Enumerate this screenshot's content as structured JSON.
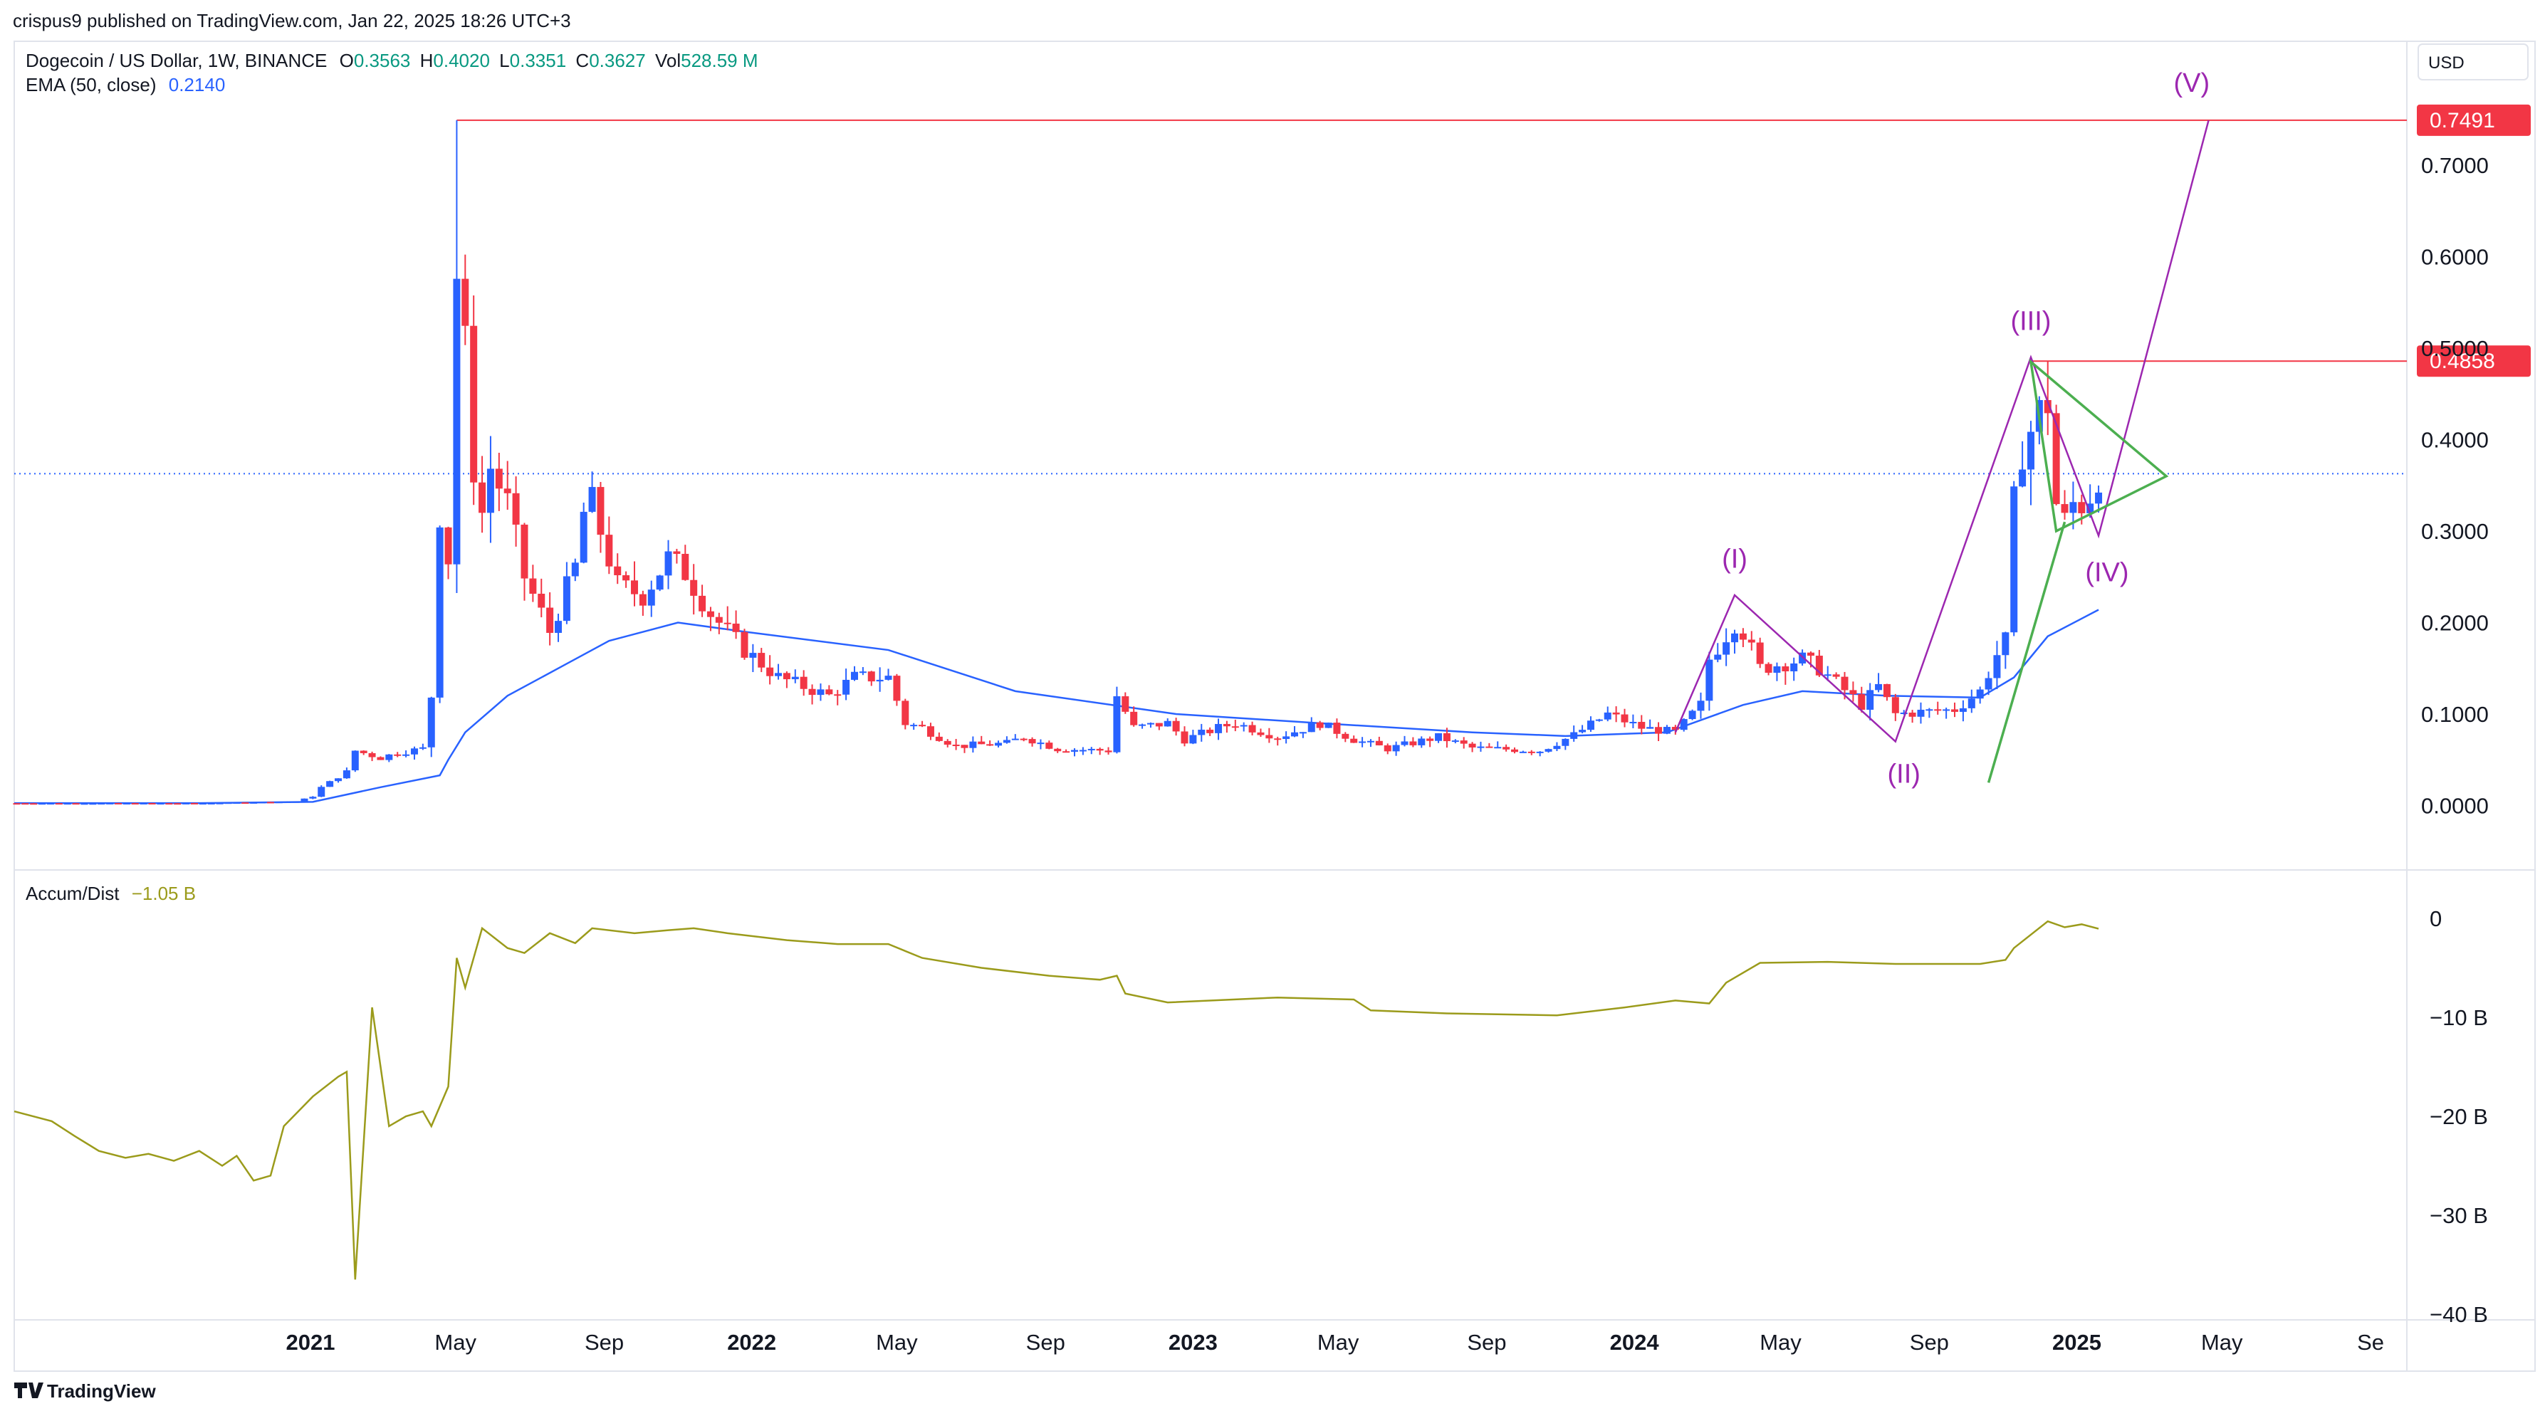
{
  "publisher_line": "crispus9 published on TradingView.com, Jan 22, 2025 18:26 UTC+3",
  "brand": "TradingView",
  "currency": "USD",
  "legend": {
    "symbol": "Dogecoin / US Dollar, 1W, BINANCE",
    "o_label": "O",
    "o_value": "0.3563",
    "h_label": "H",
    "h_value": "0.4020",
    "l_label": "L",
    "l_value": "0.3351",
    "c_label": "C",
    "c_value": "0.3627",
    "vol_label": "Vol",
    "vol_value": "528.59 M",
    "ema_label": "EMA (50, close)",
    "ema_value": "0.2140",
    "ad_label": "Accum/Dist",
    "ad_value": "−1.05 B"
  },
  "colors": {
    "up": "#2962ff",
    "down": "#f23645",
    "ema": "#2962ff",
    "ad": "#9b9b1b",
    "level": "#f23645",
    "wave": "#9c27b0",
    "triangle": "#4caf50"
  },
  "chart_data": [
    {
      "type": "candlestick",
      "title": "Dogecoin / US Dollar, 1W, BINANCE",
      "ylim": [
        -0.05,
        0.79
      ],
      "y_ticks": [
        "0.0000",
        "0.1000",
        "0.2000",
        "0.3000",
        "0.4000",
        "0.5000",
        "0.6000",
        "0.7000"
      ],
      "x_ticks": [
        "2021",
        "May",
        "Sep",
        "2022",
        "May",
        "Sep",
        "2023",
        "May",
        "Sep",
        "2024",
        "May",
        "Sep",
        "2025",
        "May",
        "Se"
      ],
      "price_labels": [
        "0.7491",
        "0.4858"
      ],
      "horizontal_levels": [
        0.7491,
        0.4858
      ],
      "last_close": 0.3627,
      "wave_labels": [
        "(I)",
        "(II)",
        "(III)",
        "(IV)",
        "(V)"
      ],
      "anchors": [
        [
          "2020-05-01",
          0.0026
        ],
        [
          "2020-10-01",
          0.0026
        ],
        [
          "2020-12-20",
          0.0045
        ],
        [
          "2021-01-03",
          0.01
        ],
        [
          "2021-01-10",
          0.02
        ],
        [
          "2021-01-31",
          0.037
        ],
        [
          "2021-02-07",
          0.06
        ],
        [
          "2021-02-28",
          0.052
        ],
        [
          "2021-03-14",
          0.058
        ],
        [
          "2021-04-04",
          0.062
        ],
        [
          "2021-04-11",
          0.12
        ],
        [
          "2021-04-18",
          0.32
        ],
        [
          "2021-04-25",
          0.27
        ],
        [
          "2021-05-02",
          0.58
        ],
        [
          "2021-05-09",
          0.5
        ],
        [
          "2021-05-16",
          0.37
        ],
        [
          "2021-05-23",
          0.32
        ],
        [
          "2021-05-30",
          0.37
        ],
        [
          "2021-06-13",
          0.33
        ],
        [
          "2021-06-27",
          0.25
        ],
        [
          "2021-07-18",
          0.19
        ],
        [
          "2021-08-08",
          0.26
        ],
        [
          "2021-08-15",
          0.32
        ],
        [
          "2021-08-22",
          0.33
        ],
        [
          "2021-09-12",
          0.24
        ],
        [
          "2021-10-03",
          0.23
        ],
        [
          "2021-10-24",
          0.27
        ],
        [
          "2021-11-07",
          0.255
        ],
        [
          "2021-11-28",
          0.21
        ],
        [
          "2021-12-26",
          0.17
        ],
        [
          "2022-01-23",
          0.14
        ],
        [
          "2022-03-06",
          0.12
        ],
        [
          "2022-03-27",
          0.14
        ],
        [
          "2022-04-24",
          0.14
        ],
        [
          "2022-05-08",
          0.09
        ],
        [
          "2022-05-22",
          0.085
        ],
        [
          "2022-06-19",
          0.065
        ],
        [
          "2022-07-31",
          0.068
        ],
        [
          "2022-08-14",
          0.075
        ],
        [
          "2022-09-11",
          0.062
        ],
        [
          "2022-10-23",
          0.06
        ],
        [
          "2022-10-30",
          0.12
        ],
        [
          "2022-11-13",
          0.085
        ],
        [
          "2022-12-11",
          0.09
        ],
        [
          "2022-12-25",
          0.072
        ],
        [
          "2023-01-22",
          0.085
        ],
        [
          "2023-02-05",
          0.09
        ],
        [
          "2023-03-12",
          0.075
        ],
        [
          "2023-04-16",
          0.09
        ],
        [
          "2023-05-14",
          0.072
        ],
        [
          "2023-06-11",
          0.062
        ],
        [
          "2023-07-23",
          0.075
        ],
        [
          "2023-08-20",
          0.063
        ],
        [
          "2023-10-15",
          0.06
        ],
        [
          "2023-11-12",
          0.077
        ],
        [
          "2023-12-10",
          0.1
        ],
        [
          "2024-01-07",
          0.085
        ],
        [
          "2024-02-04",
          0.08
        ],
        [
          "2024-02-25",
          0.11
        ],
        [
          "2024-03-03",
          0.16
        ],
        [
          "2024-03-24",
          0.2
        ],
        [
          "2024-03-31",
          0.19
        ],
        [
          "2024-04-14",
          0.15
        ],
        [
          "2024-05-19",
          0.16
        ],
        [
          "2024-06-02",
          0.15
        ],
        [
          "2024-07-07",
          0.11
        ],
        [
          "2024-07-21",
          0.13
        ],
        [
          "2024-08-04",
          0.1
        ],
        [
          "2024-09-22",
          0.105
        ],
        [
          "2024-10-13",
          0.125
        ],
        [
          "2024-10-27",
          0.165
        ],
        [
          "2024-11-03",
          0.18
        ],
        [
          "2024-11-10",
          0.33
        ],
        [
          "2024-11-17",
          0.39
        ],
        [
          "2024-12-01",
          0.43
        ],
        [
          "2024-12-08",
          0.44
        ],
        [
          "2024-12-15",
          0.33
        ],
        [
          "2024-12-22",
          0.31
        ],
        [
          "2024-12-29",
          0.33
        ],
        [
          "2025-01-05",
          0.33
        ],
        [
          "2025-01-12",
          0.34
        ],
        [
          "2025-01-19",
          0.3627
        ]
      ],
      "spike_wicks": [
        [
          "2021-05-02",
          0.7491
        ],
        [
          "2024-12-08",
          0.4858
        ]
      ],
      "series": [
        {
          "name": "EMA (50, close)",
          "points": [
            [
              "2020-05-01",
              0.0026
            ],
            [
              "2020-10-01",
              0.0026
            ],
            [
              "2021-01-03",
              0.004
            ],
            [
              "2021-02-28",
              0.02
            ],
            [
              "2021-04-18",
              0.033
            ],
            [
              "2021-04-25",
              0.05
            ],
            [
              "2021-05-09",
              0.08
            ],
            [
              "2021-06-13",
              0.12
            ],
            [
              "2021-08-01",
              0.155
            ],
            [
              "2021-09-05",
              0.18
            ],
            [
              "2021-11-01",
              0.2
            ],
            [
              "2021-12-26",
              0.19
            ],
            [
              "2022-04-24",
              0.17
            ],
            [
              "2022-08-07",
              0.125
            ],
            [
              "2022-12-18",
              0.1
            ],
            [
              "2023-04-16",
              0.09
            ],
            [
              "2023-08-20",
              0.08
            ],
            [
              "2023-11-05",
              0.076
            ],
            [
              "2024-01-28",
              0.08
            ],
            [
              "2024-03-31",
              0.11
            ],
            [
              "2024-05-19",
              0.125
            ],
            [
              "2024-07-28",
              0.12
            ],
            [
              "2024-10-13",
              0.118
            ],
            [
              "2024-11-10",
              0.14
            ],
            [
              "2024-12-08",
              0.185
            ],
            [
              "2025-01-19",
              0.214
            ]
          ]
        },
        {
          "name": "Accum/Dist",
          "unit": "B",
          "ylim": [
            -40,
            0
          ],
          "y_ticks": [
            "0",
            "−10 B",
            "−20 B",
            "−30 B",
            "−40 B"
          ],
          "points": [
            [
              "2020-05-01",
              -19.5
            ],
            [
              "2020-06-01",
              -20.5
            ],
            [
              "2020-06-20",
              -22
            ],
            [
              "2020-07-10",
              -23.5
            ],
            [
              "2020-08-01",
              -24.2
            ],
            [
              "2020-08-20",
              -23.8
            ],
            [
              "2020-09-10",
              -24.5
            ],
            [
              "2020-10-01",
              -23.5
            ],
            [
              "2020-10-20",
              -25
            ],
            [
              "2020-11-01",
              -24
            ],
            [
              "2020-11-15",
              -26.5
            ],
            [
              "2020-11-29",
              -26
            ],
            [
              "2020-12-10",
              -21
            ],
            [
              "2021-01-03",
              -18
            ],
            [
              "2021-01-24",
              -16
            ],
            [
              "2021-01-31",
              -15.5
            ],
            [
              "2021-02-07",
              -36.5
            ],
            [
              "2021-02-21",
              -9
            ],
            [
              "2021-03-07",
              -21
            ],
            [
              "2021-03-21",
              -20
            ],
            [
              "2021-04-04",
              -19.5
            ],
            [
              "2021-04-11",
              -21
            ],
            [
              "2021-04-25",
              -17
            ],
            [
              "2021-05-02",
              -4
            ],
            [
              "2021-05-09",
              -7
            ],
            [
              "2021-05-23",
              -1
            ],
            [
              "2021-06-13",
              -3
            ],
            [
              "2021-06-27",
              -3.5
            ],
            [
              "2021-07-18",
              -1.5
            ],
            [
              "2021-08-08",
              -2.5
            ],
            [
              "2021-08-22",
              -1
            ],
            [
              "2021-09-26",
              -1.5
            ],
            [
              "2021-10-24",
              -1.2
            ],
            [
              "2021-11-14",
              -1.0
            ],
            [
              "2021-12-12",
              -1.5
            ],
            [
              "2022-01-30",
              -2.2
            ],
            [
              "2022-03-13",
              -2.6
            ],
            [
              "2022-04-24",
              -2.6
            ],
            [
              "2022-05-22",
              -4.0
            ],
            [
              "2022-07-10",
              -5.0
            ],
            [
              "2022-09-04",
              -5.8
            ],
            [
              "2022-10-16",
              -6.2
            ],
            [
              "2022-10-30",
              -5.8
            ],
            [
              "2022-11-06",
              -7.6
            ],
            [
              "2022-12-11",
              -8.5
            ],
            [
              "2023-03-12",
              -8.0
            ],
            [
              "2023-05-14",
              -8.2
            ],
            [
              "2023-05-28",
              -9.3
            ],
            [
              "2023-07-30",
              -9.6
            ],
            [
              "2023-10-29",
              -9.8
            ],
            [
              "2023-12-24",
              -9.0
            ],
            [
              "2024-02-04",
              -8.3
            ],
            [
              "2024-03-03",
              -8.6
            ],
            [
              "2024-03-17",
              -6.5
            ],
            [
              "2024-04-14",
              -4.5
            ],
            [
              "2024-06-09",
              -4.4
            ],
            [
              "2024-08-04",
              -4.6
            ],
            [
              "2024-10-13",
              -4.6
            ],
            [
              "2024-11-03",
              -4.2
            ],
            [
              "2024-11-10",
              -3.0
            ],
            [
              "2024-12-08",
              -0.3
            ],
            [
              "2024-12-22",
              -0.9
            ],
            [
              "2025-01-05",
              -0.6
            ],
            [
              "2025-01-19",
              -1.05
            ]
          ]
        }
      ],
      "drawings": {
        "wave_path": [
          [
            "2024-02-04",
            0.08
          ],
          [
            "2024-03-24",
            0.23
          ],
          [
            "2024-08-04",
            0.07
          ],
          [
            "2024-11-24",
            0.49
          ],
          [
            "2025-01-19",
            0.295
          ],
          [
            "2025-04-20",
            0.749
          ]
        ],
        "triangle": [
          [
            "2024-11-24",
            0.485
          ],
          [
            "2025-03-16",
            0.36
          ],
          [
            "2024-12-15",
            0.3
          ]
        ],
        "trendline": [
          [
            "2024-10-20",
            0.025
          ],
          [
            "2024-12-22",
            0.31
          ]
        ]
      }
    }
  ]
}
